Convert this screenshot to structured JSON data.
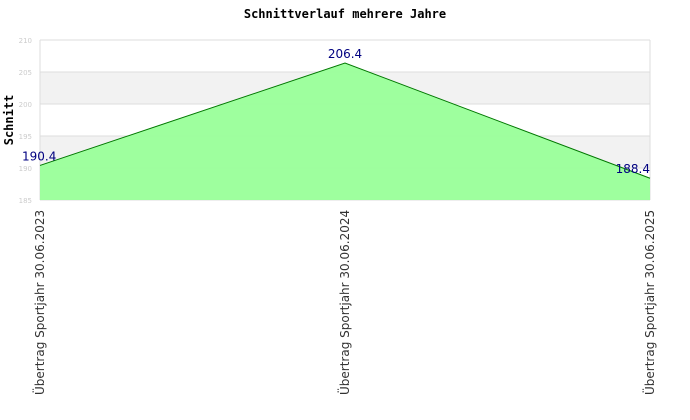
{
  "chart_data": {
    "type": "area",
    "title": "Schnittverlauf mehrere Jahre",
    "y_label": "Schnitt",
    "categories": [
      "Übertrag Sportjahr 30.06.2023",
      "Übertrag Sportjahr 30.06.2024",
      "Übertrag Sportjahr 30.06.2025"
    ],
    "series": [
      {
        "name": "Schnitt",
        "color": "#99ff99",
        "line_color": "#007700",
        "label_color": "#000080",
        "values": [
          190.4,
          206.4,
          188.4
        ]
      }
    ],
    "ylim": [
      185,
      210
    ],
    "yticks": [
      185,
      190,
      195,
      200,
      205,
      210
    ],
    "grid": true
  }
}
